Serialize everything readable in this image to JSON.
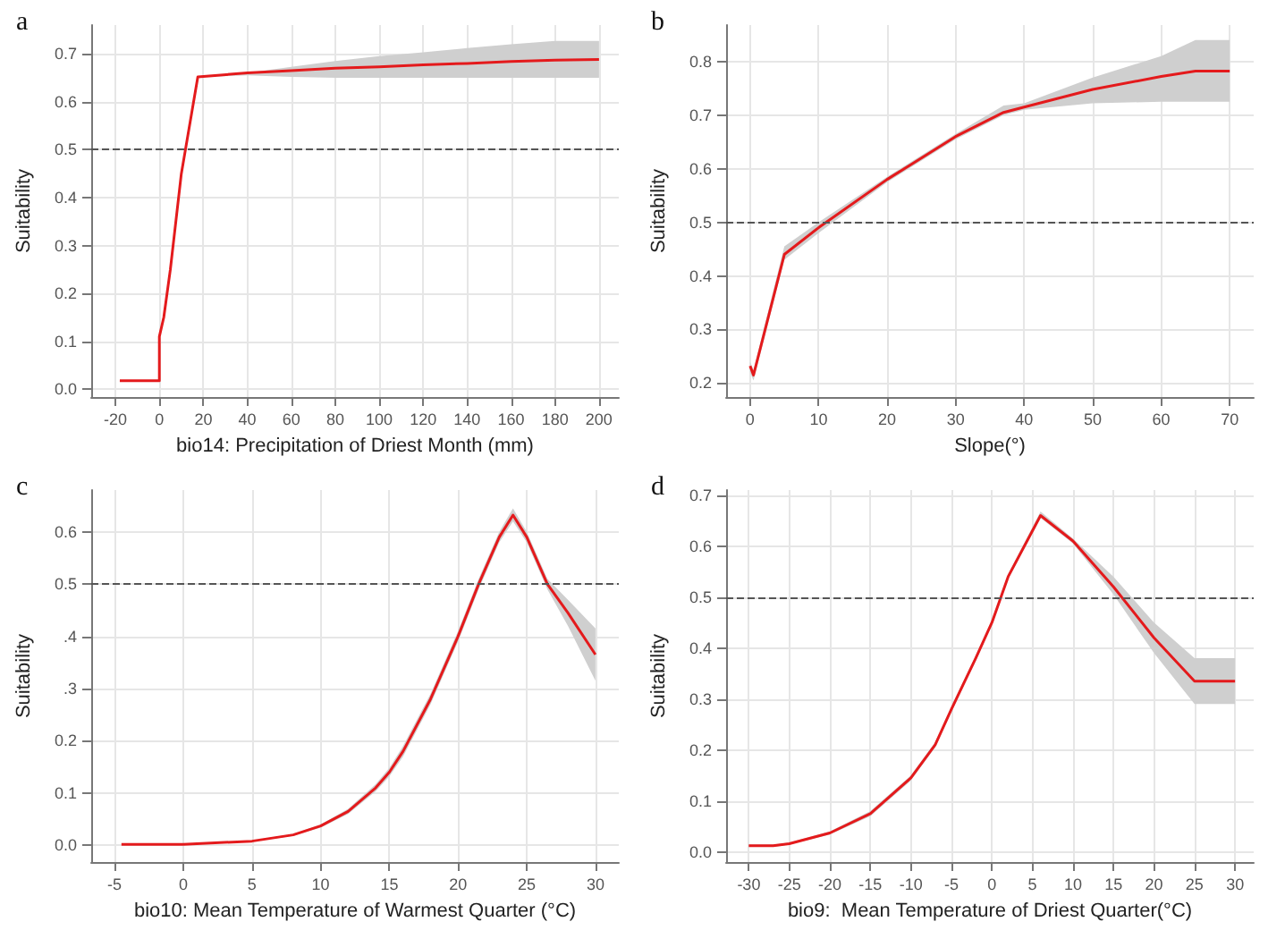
{
  "chart_data": [
    {
      "type": "line",
      "title": "a",
      "xlabel": "bio14: Precipitation of Driest Month (mm)",
      "ylabel": "Suitability",
      "xlim": [
        -31,
        209
      ],
      "ylim": [
        -0.016,
        0.76
      ],
      "xticks": [
        -20,
        0,
        20,
        40,
        60,
        80,
        100,
        120,
        140,
        160,
        180,
        200
      ],
      "yticks": [
        {
          "value": 0,
          "label": "0.0"
        },
        0.1,
        0.2,
        0.3,
        0.4,
        0.5,
        0.6,
        0.7
      ],
      "grid": true,
      "marker": "none",
      "line_style": "solid",
      "ref_lines": [
        {
          "axis": "y",
          "value": 0.5,
          "color": "#555555",
          "line_style": "dashed"
        }
      ],
      "series": [
        {
          "color": "#e41a1c",
          "x": [
            -18,
            0,
            0,
            2,
            5,
            10,
            17.5,
            40,
            60,
            80,
            100,
            120,
            140,
            160,
            180,
            200
          ],
          "values": [
            0.018,
            0.018,
            0.11,
            0.15,
            0.25,
            0.45,
            0.652,
            0.66,
            0.665,
            0.67,
            0.673,
            0.677,
            0.68,
            0.684,
            0.687,
            0.688
          ],
          "lower": [
            0.018,
            0.018,
            0.11,
            0.15,
            0.25,
            0.45,
            0.652,
            0.655,
            0.652,
            0.65,
            0.65,
            0.65,
            0.65,
            0.65,
            0.65,
            0.65
          ],
          "upper": [
            0.018,
            0.018,
            0.11,
            0.15,
            0.25,
            0.45,
            0.652,
            0.66,
            0.673,
            0.685,
            0.695,
            0.703,
            0.712,
            0.72,
            0.727,
            0.727
          ]
        }
      ]
    },
    {
      "type": "line",
      "title": "b",
      "xlabel": "Slope(°)",
      "ylabel": "Suitability",
      "xlim": [
        -3.5,
        73.5
      ],
      "ylim": [
        0.174,
        0.868
      ],
      "xticks": [
        0,
        10,
        20,
        30,
        40,
        50,
        60,
        70
      ],
      "yticks": [
        0.2,
        0.3,
        0.4,
        0.5,
        0.6,
        0.7,
        0.8
      ],
      "grid": true,
      "marker": "none",
      "line_style": "solid",
      "ref_lines": [
        {
          "axis": "y",
          "value": 0.5,
          "color": "#555555",
          "line_style": "dashed"
        }
      ],
      "series": [
        {
          "color": "#e41a1c",
          "x": [
            0,
            0.5,
            5,
            10,
            20,
            30,
            37,
            40,
            50,
            60,
            65,
            70
          ],
          "values": [
            0.232,
            0.215,
            0.44,
            0.49,
            0.58,
            0.66,
            0.705,
            0.715,
            0.748,
            0.772,
            0.782,
            0.782
          ],
          "lower": [
            0.22,
            0.205,
            0.43,
            0.48,
            0.575,
            0.655,
            0.7,
            0.71,
            0.722,
            0.725,
            0.725,
            0.725
          ],
          "upper": [
            0.24,
            0.225,
            0.455,
            0.5,
            0.585,
            0.665,
            0.718,
            0.722,
            0.77,
            0.81,
            0.84,
            0.84
          ]
        }
      ]
    },
    {
      "type": "line",
      "title": "c",
      "xlabel": "bio10: Mean Temperature of Warmest Quarter (°C)",
      "ylabel": "Suitability",
      "xlim": [
        -6.7,
        31.7
      ],
      "ylim": [
        -0.032,
        0.68
      ],
      "xticks": [
        -5,
        0,
        5,
        10,
        15,
        20,
        25,
        30
      ],
      "yticks": [
        {
          "value": 0,
          "label": "0.0"
        },
        0.1,
        0.2,
        {
          "value": 0.3,
          "label": ".3"
        },
        {
          "value": 0.4,
          "label": ".4"
        },
        0.5,
        0.6
      ],
      "grid": true,
      "marker": "none",
      "line_style": "solid",
      "ref_lines": [
        {
          "axis": "y",
          "value": 0.5,
          "color": "#555555",
          "line_style": "dashed"
        }
      ],
      "series": [
        {
          "color": "#e41a1c",
          "x": [
            -4.5,
            0,
            5,
            8,
            10,
            12,
            14,
            15,
            16,
            18,
            20,
            21.5,
            23,
            24,
            25,
            26.5,
            28,
            30
          ],
          "values": [
            0.002,
            0.002,
            0.008,
            0.02,
            0.037,
            0.065,
            0.11,
            0.14,
            0.18,
            0.28,
            0.4,
            0.5,
            0.59,
            0.632,
            0.59,
            0.5,
            0.445,
            0.365
          ],
          "lower": [
            0.002,
            0.002,
            0.007,
            0.018,
            0.034,
            0.06,
            0.103,
            0.132,
            0.17,
            0.27,
            0.39,
            0.49,
            0.58,
            0.62,
            0.58,
            0.49,
            0.42,
            0.315
          ],
          "upper": [
            0.002,
            0.002,
            0.009,
            0.022,
            0.04,
            0.07,
            0.117,
            0.148,
            0.19,
            0.29,
            0.41,
            0.51,
            0.6,
            0.645,
            0.6,
            0.51,
            0.47,
            0.415
          ]
        }
      ]
    },
    {
      "type": "line",
      "title": "d",
      "xlabel": "bio9:  Mean Temperature of Driest Quarter(°C)",
      "ylabel": "Suitability",
      "xlim": [
        -32.8,
        32.3
      ],
      "ylim": [
        -0.02,
        0.71
      ],
      "xticks": [
        -30,
        -25,
        -20,
        -15,
        -10,
        -5,
        0,
        5,
        10,
        15,
        20,
        25,
        30
      ],
      "yticks": [
        {
          "value": 0,
          "label": "0.0"
        },
        0.1,
        0.2,
        0.3,
        0.4,
        0.5,
        0.6,
        0.7
      ],
      "grid": true,
      "marker": "none",
      "line_style": "solid",
      "ref_lines": [
        {
          "axis": "y",
          "value": 0.5,
          "color": "#555555",
          "line_style": "dashed"
        }
      ],
      "series": [
        {
          "color": "#e41a1c",
          "x": [
            -30,
            -27,
            -25,
            -20,
            -15,
            -10,
            -7,
            -5,
            -2,
            0,
            2,
            6,
            10,
            15,
            20,
            25,
            30
          ],
          "values": [
            0.012,
            0.012,
            0.016,
            0.037,
            0.075,
            0.145,
            0.21,
            0.28,
            0.38,
            0.45,
            0.54,
            0.66,
            0.61,
            0.52,
            0.42,
            0.335,
            0.335
          ],
          "lower": [
            0.01,
            0.01,
            0.014,
            0.034,
            0.07,
            0.14,
            0.205,
            0.275,
            0.375,
            0.445,
            0.535,
            0.655,
            0.605,
            0.505,
            0.39,
            0.29,
            0.29
          ],
          "upper": [
            0.014,
            0.014,
            0.018,
            0.04,
            0.08,
            0.15,
            0.215,
            0.285,
            0.385,
            0.455,
            0.545,
            0.668,
            0.615,
            0.54,
            0.45,
            0.38,
            0.38
          ]
        }
      ]
    }
  ]
}
